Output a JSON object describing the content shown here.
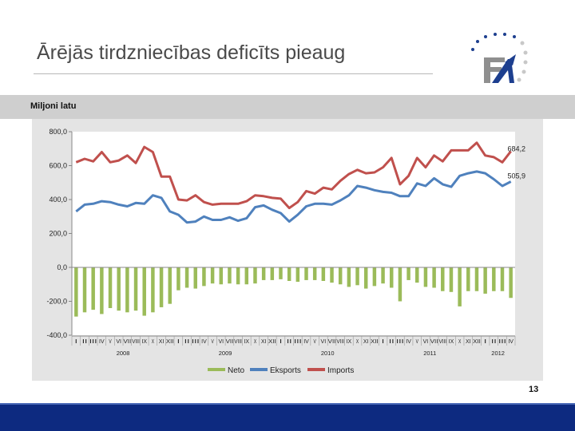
{
  "slide": {
    "title": "Ārējās tirdzniecības deficīts pieaug",
    "subtitle": "Miljoni latu",
    "page_number": "13"
  },
  "colors": {
    "neto": "#9bbb59",
    "eksports": "#4f81bd",
    "imports": "#c0504d",
    "footer": "#0d2a80"
  },
  "chart_data": {
    "type": "bar+line",
    "ylim": [
      -400,
      800
    ],
    "yticks": [
      "800,0",
      "600,0",
      "400,0",
      "200,0",
      "0,0",
      "-200,0",
      "-400,0"
    ],
    "ytick_values": [
      800,
      600,
      400,
      200,
      0,
      -200,
      -400
    ],
    "month_labels": [
      "I",
      "II",
      "III",
      "IV",
      "V",
      "VI",
      "VII",
      "VIII",
      "IX",
      "X",
      "XI",
      "XII",
      "I",
      "II",
      "III",
      "IV",
      "V",
      "VI",
      "VII",
      "VIII",
      "IX",
      "X",
      "XI",
      "XII",
      "I",
      "II",
      "III",
      "IV",
      "V",
      "VI",
      "VII",
      "VIII",
      "IX",
      "X",
      "XI",
      "XII",
      "I",
      "II",
      "III",
      "IV",
      "V",
      "VI",
      "VII",
      "VIII",
      "IX",
      "X",
      "XI",
      "XII",
      "I",
      "II",
      "III",
      "IV"
    ],
    "years": [
      {
        "label": "2008",
        "start": 0,
        "end": 11
      },
      {
        "label": "2009",
        "start": 12,
        "end": 23
      },
      {
        "label": "2010",
        "start": 24,
        "end": 35
      },
      {
        "label": "2011",
        "start": 36,
        "end": 47
      },
      {
        "label": "2012",
        "start": 48,
        "end": 51
      }
    ],
    "series": [
      {
        "name": "Neto",
        "type": "bar",
        "values": [
          -290,
          -265,
          -250,
          -275,
          -240,
          -255,
          -265,
          -255,
          -285,
          -265,
          -235,
          -215,
          -135,
          -120,
          -125,
          -110,
          -95,
          -100,
          -95,
          -100,
          -100,
          -95,
          -75,
          -75,
          -70,
          -80,
          -85,
          -75,
          -75,
          -80,
          -90,
          -100,
          -115,
          -105,
          -125,
          -110,
          -95,
          -120,
          -200,
          -75,
          -90,
          -115,
          -120,
          -140,
          -145,
          -230,
          -140,
          -140,
          -155,
          -140,
          -140,
          -180
        ]
      },
      {
        "name": "Eksports",
        "type": "line",
        "values": [
          330,
          370,
          375,
          390,
          385,
          370,
          360,
          380,
          375,
          425,
          410,
          330,
          310,
          265,
          270,
          300,
          280,
          280,
          295,
          275,
          290,
          355,
          365,
          340,
          320,
          270,
          310,
          360,
          375,
          375,
          370,
          395,
          425,
          480,
          470,
          455,
          445,
          440,
          420,
          420,
          495,
          480,
          525,
          490,
          475,
          540,
          555,
          565,
          555,
          520,
          480,
          505.9
        ]
      },
      {
        "name": "Imports",
        "type": "line",
        "values": [
          620,
          640,
          625,
          680,
          620,
          630,
          660,
          615,
          710,
          680,
          535,
          535,
          400,
          395,
          425,
          385,
          370,
          375,
          375,
          375,
          390,
          425,
          420,
          410,
          405,
          350,
          385,
          450,
          435,
          470,
          460,
          510,
          550,
          575,
          555,
          560,
          590,
          645,
          490,
          540,
          645,
          590,
          660,
          625,
          690,
          690,
          690,
          735,
          660,
          650,
          620,
          684.2
        ]
      }
    ],
    "annotations": {
      "eksports_last": "505,9",
      "imports_last": "684,2"
    },
    "legend": {
      "position": "bottom",
      "items": [
        "Neto",
        "Eksports",
        "Imports"
      ]
    }
  }
}
